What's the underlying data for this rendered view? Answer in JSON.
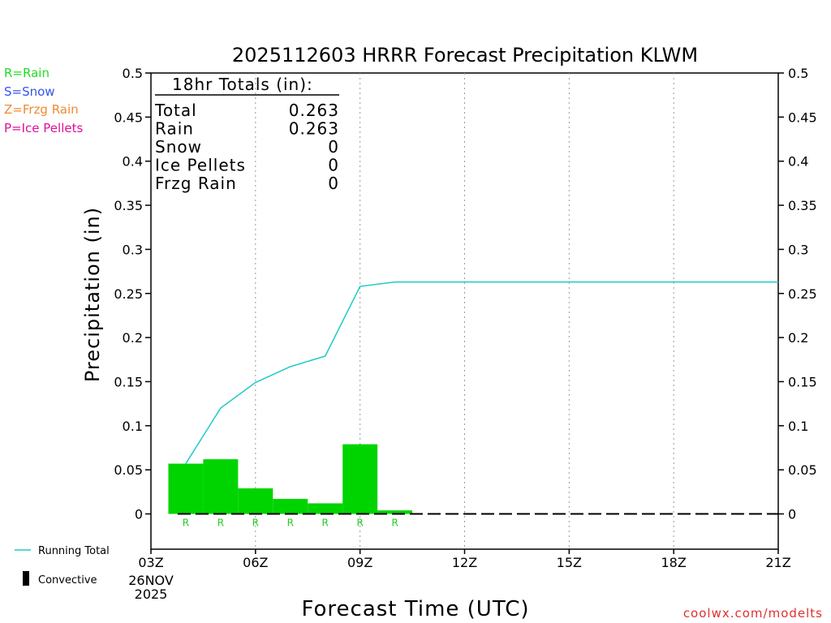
{
  "chart_data": {
    "type": "bar",
    "title": "2025112603 HRRR Forecast Precipitation KLWM",
    "xlabel": "Forecast Time (UTC)",
    "ylabel": "Precipitation (in)",
    "ylim": [
      -0.04,
      0.5
    ],
    "yticks": [
      0,
      0.05,
      0.1,
      0.15,
      0.2,
      0.25,
      0.3,
      0.35,
      0.4,
      0.45,
      0.5
    ],
    "ytick_labels": [
      "0",
      "0.05",
      "0.1",
      "0.15",
      "0.2",
      "0.25",
      "0.3",
      "0.35",
      "0.4",
      "0.45",
      "0.5"
    ],
    "xlim": [
      3,
      21
    ],
    "xticks": [
      3,
      6,
      9,
      12,
      15,
      18,
      21
    ],
    "xtick_labels": [
      "03Z",
      "06Z",
      "09Z",
      "12Z",
      "15Z",
      "18Z",
      "21Z"
    ],
    "x_date_label": [
      "26NOV",
      "2025"
    ],
    "grid": "vertical dotted",
    "hourly_bars": [
      {
        "x": 4,
        "value": 0.057,
        "ptype": "R"
      },
      {
        "x": 5,
        "value": 0.062,
        "ptype": "R"
      },
      {
        "x": 6,
        "value": 0.029,
        "ptype": "R"
      },
      {
        "x": 7,
        "value": 0.017,
        "ptype": "R"
      },
      {
        "x": 8,
        "value": 0.012,
        "ptype": "R"
      },
      {
        "x": 9,
        "value": 0.079,
        "ptype": "R"
      },
      {
        "x": 10,
        "value": 0.004,
        "ptype": "R"
      }
    ],
    "running_total": {
      "name": "Running Total",
      "x": [
        4,
        5,
        6,
        7,
        8,
        9,
        10,
        11,
        12,
        13,
        14,
        15,
        16,
        17,
        18,
        19,
        20,
        21
      ],
      "y": [
        0.057,
        0.12,
        0.149,
        0.167,
        0.179,
        0.258,
        0.263,
        0.263,
        0.263,
        0.263,
        0.263,
        0.263,
        0.263,
        0.263,
        0.263,
        0.263,
        0.263,
        0.263
      ]
    },
    "convective": {
      "x_start": 4,
      "x_end": 21,
      "value": 0
    }
  },
  "totals_box": {
    "title": "18hr Totals (in):",
    "rows": [
      {
        "label": "Total",
        "value": "0.263"
      },
      {
        "label": "Rain",
        "value": "0.263"
      },
      {
        "label": "Snow",
        "value": "0"
      },
      {
        "label": "Ice Pellets",
        "value": "0"
      },
      {
        "label": "Frzg Rain",
        "value": "0"
      }
    ]
  },
  "ptype_legend": [
    {
      "text": "R=Rain",
      "color": "#22dd22"
    },
    {
      "text": "S=Snow",
      "color": "#3355ee"
    },
    {
      "text": "Z=Frzg Rain",
      "color": "#f08a30"
    },
    {
      "text": "P=Ice Pellets",
      "color": "#dd1199"
    }
  ],
  "series_legend": {
    "running_total": "Running Total",
    "convective": "Convective"
  },
  "colors": {
    "bar": "#00d400",
    "running_total": "#1fc9c9",
    "rain_marker": "#22cc22",
    "credit": "#e03030"
  },
  "credit": "coolwx.com/modelts"
}
